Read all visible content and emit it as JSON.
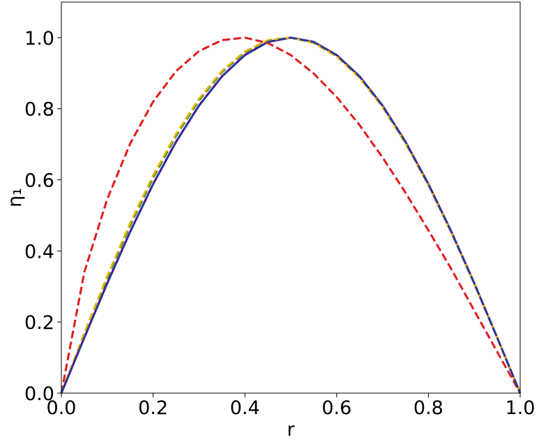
{
  "chart_data": {
    "type": "line",
    "xlabel": "r",
    "ylabel": "η₁",
    "x": [
      0,
      0.05,
      0.1,
      0.15,
      0.2,
      0.25,
      0.3,
      0.35,
      0.4,
      0.45,
      0.5,
      0.55,
      0.6,
      0.65,
      0.7,
      0.75,
      0.8,
      0.85,
      0.9,
      0.95,
      1
    ],
    "series": [
      {
        "color": "#4b0a8c",
        "style": "solid",
        "values": [
          0,
          0.156,
          0.309,
          0.454,
          0.588,
          0.707,
          0.809,
          0.891,
          0.951,
          0.988,
          1,
          0.988,
          0.951,
          0.891,
          0.809,
          0.707,
          0.588,
          0.454,
          0.309,
          0.156,
          0
        ]
      },
      {
        "color": "#e31a1c",
        "style": "dashed",
        "values": [
          0,
          0.34,
          0.546,
          0.702,
          0.82,
          0.906,
          0.962,
          0.993,
          1.0,
          0.985,
          0.951,
          0.899,
          0.833,
          0.754,
          0.663,
          0.564,
          0.458,
          0.349,
          0.232,
          0.116,
          0
        ]
      },
      {
        "color": "#1f7a1f",
        "style": "dashed",
        "values": [
          0,
          0.166,
          0.324,
          0.472,
          0.606,
          0.724,
          0.824,
          0.903,
          0.959,
          0.992,
          1,
          0.986,
          0.948,
          0.888,
          0.806,
          0.704,
          0.586,
          0.452,
          0.308,
          0.155,
          0
        ]
      },
      {
        "color": "#e6b400",
        "style": "dashed",
        "values": [
          0,
          0.168,
          0.329,
          0.478,
          0.612,
          0.729,
          0.828,
          0.906,
          0.961,
          0.993,
          1,
          0.985,
          0.947,
          0.887,
          0.805,
          0.703,
          0.585,
          0.452,
          0.307,
          0.155,
          0
        ]
      },
      {
        "color": "#2a3a9a",
        "style": "dashed",
        "values": [
          0,
          0.156,
          0.309,
          0.454,
          0.588,
          0.707,
          0.809,
          0.891,
          0.951,
          0.988,
          1,
          0.988,
          0.951,
          0.891,
          0.809,
          0.707,
          0.588,
          0.454,
          0.309,
          0.156,
          0
        ]
      }
    ],
    "xlim": [
      0,
      1
    ],
    "ylim": [
      0,
      1.1
    ],
    "xticks": [
      {
        "value": 0,
        "label": "0.0"
      },
      {
        "value": 0.2,
        "label": "0.2"
      },
      {
        "value": 0.4,
        "label": "0.4"
      },
      {
        "value": 0.6,
        "label": "0.6"
      },
      {
        "value": 0.8,
        "label": "0.8"
      },
      {
        "value": 1,
        "label": "1.0"
      }
    ],
    "yticks": [
      {
        "value": 0,
        "label": "0.0"
      },
      {
        "value": 0.2,
        "label": "0.2"
      },
      {
        "value": 0.4,
        "label": "0.4"
      },
      {
        "value": 0.6,
        "label": "0.6"
      },
      {
        "value": 0.8,
        "label": "0.8"
      },
      {
        "value": 1,
        "label": "1.0"
      }
    ],
    "grid": false
  }
}
